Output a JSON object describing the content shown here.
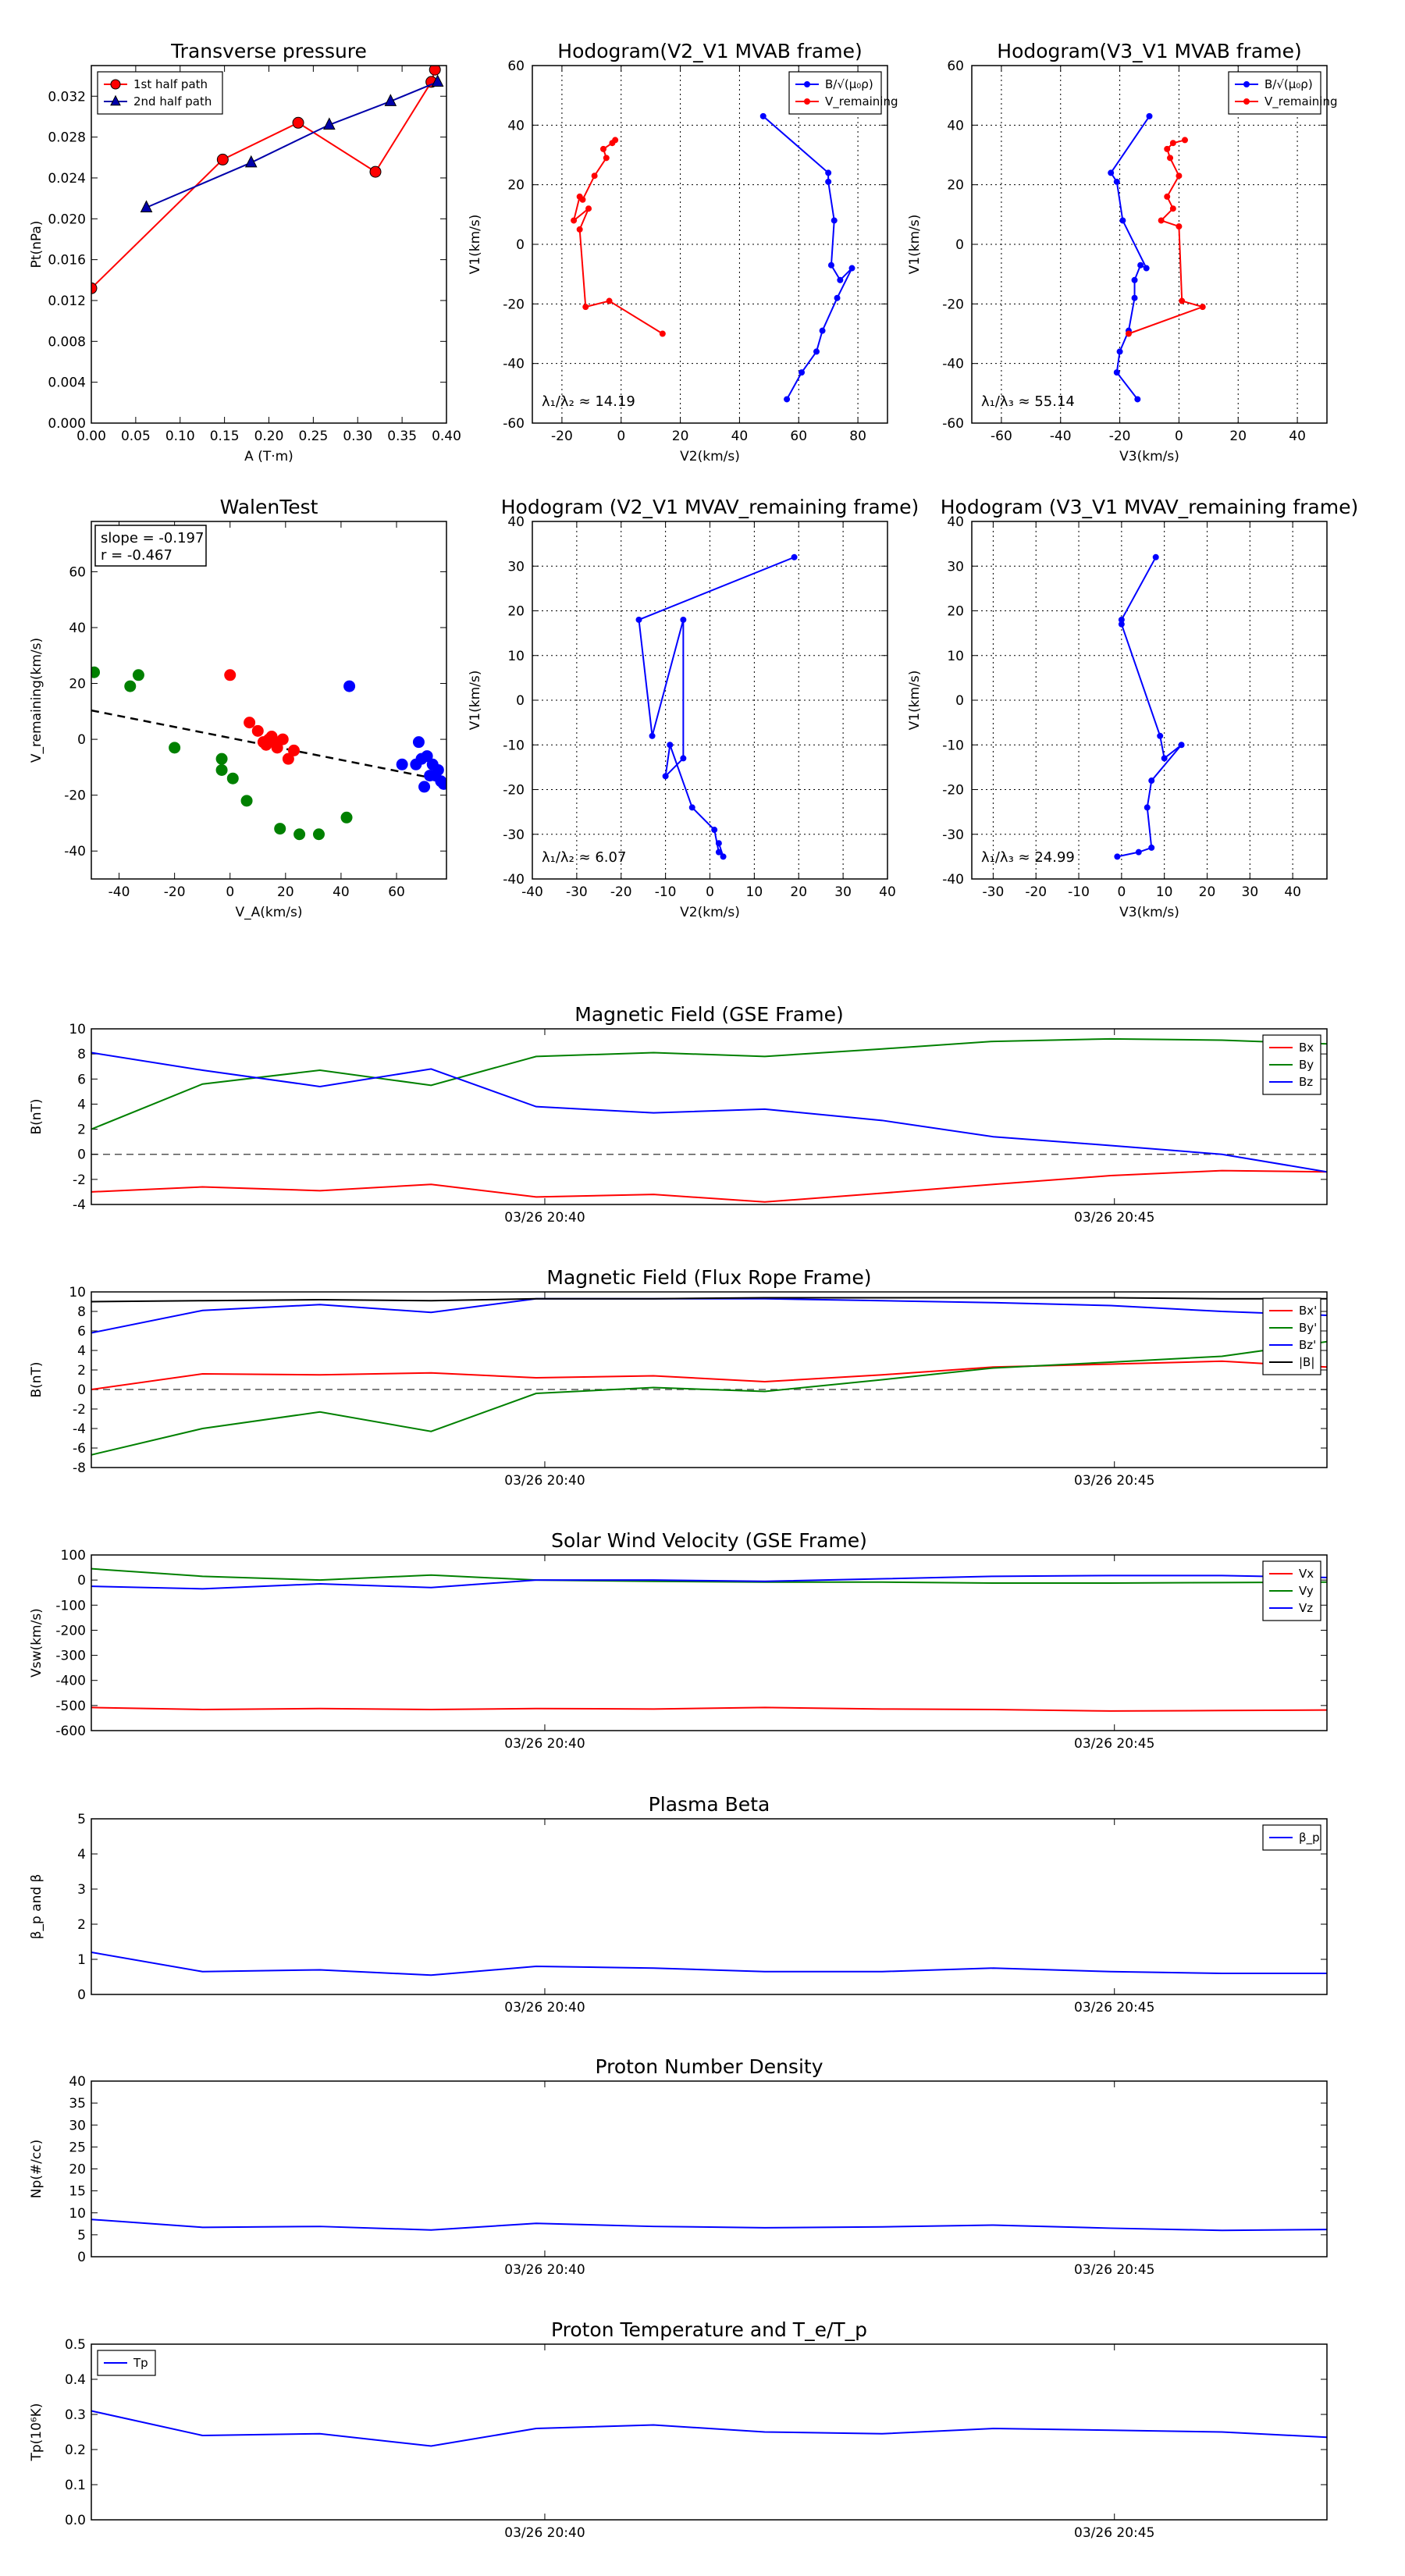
{
  "chart_data": [
    {
      "id": "transverse-pressure",
      "type": "line",
      "title": "Transverse pressure",
      "xlabel": "A (T·m)",
      "ylabel": "Pt(nPa)",
      "xlim": [
        0,
        0.4
      ],
      "ylim": [
        0,
        0.035
      ],
      "xticks": [
        0,
        0.05,
        0.1,
        0.15,
        0.2,
        0.25,
        0.3,
        0.35,
        0.4
      ],
      "xticklabels": [
        "0.00",
        "0.05",
        "0.10",
        "0.15",
        "0.20",
        "0.25",
        "0.30",
        "0.35",
        "0.40"
      ],
      "yticks": [
        0,
        0.004,
        0.008,
        0.012,
        0.016,
        0.02,
        0.024,
        0.028,
        0.032
      ],
      "yticklabels": [
        "0.000",
        "0.004",
        "0.008",
        "0.012",
        "0.016",
        "0.020",
        "0.024",
        "0.028",
        "0.032"
      ],
      "grid": false,
      "legend_position": "top-left",
      "series": [
        {
          "name": "1st half path",
          "color": "#ff0000",
          "marker": "circle",
          "x": [
            0.0,
            0.148,
            0.233,
            0.32,
            0.383,
            0.387
          ],
          "y": [
            0.0132,
            0.0258,
            0.0294,
            0.0246,
            0.0334,
            0.0346
          ]
        },
        {
          "name": "2nd half path",
          "color": "#0000aa",
          "marker": "triangle",
          "x": [
            0.062,
            0.18,
            0.268,
            0.337,
            0.39
          ],
          "y": [
            0.0211,
            0.0255,
            0.0292,
            0.0315,
            0.0334
          ]
        }
      ]
    },
    {
      "id": "hodogram-v2-v1-mvab",
      "type": "line",
      "title": "Hodogram(V2_V1 MVAB frame)",
      "xlabel": "V2(km/s)",
      "ylabel": "V1(km/s)",
      "xlim": [
        -30,
        90
      ],
      "ylim": [
        -60,
        60
      ],
      "xticks": [
        -20,
        0,
        20,
        40,
        60,
        80
      ],
      "yticks": [
        -60,
        -40,
        -20,
        0,
        20,
        40,
        60
      ],
      "grid": true,
      "legend_position": "top-right",
      "annotation": "λ₁/λ₂ ≈ 14.19",
      "series": [
        {
          "name": "B/√(μ₀ρ)",
          "color": "#0000ff",
          "x": [
            48,
            70,
            70,
            72,
            71,
            74,
            78,
            73,
            68,
            66,
            61,
            56
          ],
          "y": [
            43,
            24,
            21,
            8,
            -7,
            -12,
            -8,
            -18,
            -29,
            -36,
            -43,
            -52
          ]
        },
        {
          "name": "V_remaining",
          "color": "#ff0000",
          "x": [
            -2,
            -3,
            -6,
            -5,
            -9,
            -13,
            -14,
            -16,
            -11,
            -14,
            -12,
            -4,
            14
          ],
          "y": [
            35,
            34,
            32,
            29,
            23,
            15,
            16,
            8,
            12,
            5,
            -21,
            -19,
            -30
          ]
        }
      ]
    },
    {
      "id": "hodogram-v3-v1-mvab",
      "type": "line",
      "title": "Hodogram(V3_V1 MVAB frame)",
      "xlabel": "V3(km/s)",
      "ylabel": "V1(km/s)",
      "xlim": [
        -70,
        50
      ],
      "ylim": [
        -60,
        60
      ],
      "xticks": [
        -60,
        -40,
        -20,
        0,
        20,
        40
      ],
      "yticks": [
        -60,
        -40,
        -20,
        0,
        20,
        40,
        60
      ],
      "grid": true,
      "legend_position": "top-right",
      "annotation": "λ₁/λ₃ ≈ 55.14",
      "series": [
        {
          "name": "B/√(μ₀ρ)",
          "color": "#0000ff",
          "x": [
            -10,
            -23,
            -21,
            -19,
            -11,
            -13,
            -15,
            -15,
            -17,
            -20,
            -21,
            -14
          ],
          "y": [
            43,
            24,
            21,
            8,
            -8,
            -7,
            -12,
            -18,
            -29,
            -36,
            -43,
            -52
          ]
        },
        {
          "name": "V_remaining",
          "color": "#ff0000",
          "x": [
            2,
            -2,
            -4,
            -3,
            0,
            -4,
            -2,
            -6,
            0,
            1,
            8,
            -17
          ],
          "y": [
            35,
            34,
            32,
            29,
            23,
            16,
            12,
            8,
            6,
            -19,
            -21,
            -30
          ]
        }
      ]
    },
    {
      "id": "walen-test",
      "type": "scatter",
      "title": "WalenTest",
      "xlabel": "V_A(km/s)",
      "ylabel": "V_remaining(km/s)",
      "xlim": [
        -50,
        78
      ],
      "ylim": [
        -50,
        78
      ],
      "xticks": [
        -40,
        -20,
        0,
        20,
        40,
        60
      ],
      "yticks": [
        -40,
        -20,
        0,
        20,
        40,
        60
      ],
      "grid": false,
      "annotation_lines": [
        "slope = -0.197",
        "r = -0.467"
      ],
      "fit_line": {
        "color": "#000000",
        "style": "dashed",
        "slope": -0.197,
        "intercept": 0.5
      },
      "series": [
        {
          "color": "#008000",
          "x": [
            -49,
            -36,
            -33,
            -20,
            -3,
            -3,
            1,
            6,
            18,
            25,
            32,
            42
          ],
          "y": [
            24,
            19,
            23,
            -3,
            -7,
            -11,
            -14,
            -22,
            -32,
            -34,
            -34,
            -28
          ]
        },
        {
          "color": "#ff0000",
          "x": [
            0,
            7,
            10,
            12,
            13,
            14,
            15,
            16,
            17,
            19,
            21,
            23
          ],
          "y": [
            23,
            6,
            3,
            -1,
            -2,
            0,
            1,
            -1,
            -3,
            0,
            -7,
            -4
          ]
        },
        {
          "color": "#0000ff",
          "x": [
            43,
            62,
            67,
            68,
            69,
            70,
            71,
            72,
            73,
            74,
            75,
            76,
            77
          ],
          "y": [
            19,
            -9,
            -9,
            -1,
            -7,
            -17,
            -6,
            -13,
            -9,
            -13,
            -11,
            -15,
            -16
          ]
        }
      ]
    },
    {
      "id": "hodogram-v2-v1-mvav",
      "type": "line",
      "title": "Hodogram (V2_V1 MVAV_remaining frame)",
      "xlabel": "V2(km/s)",
      "ylabel": "V1(km/s)",
      "xlim": [
        -40,
        40
      ],
      "ylim": [
        -40,
        40
      ],
      "xticks": [
        -40,
        -30,
        -20,
        -10,
        0,
        10,
        20,
        30,
        40
      ],
      "yticks": [
        -40,
        -30,
        -20,
        -10,
        0,
        10,
        20,
        30,
        40
      ],
      "grid": true,
      "annotation": "λ₁/λ₂ ≈ 6.07",
      "series": [
        {
          "color": "#0000ff",
          "x": [
            19,
            -16,
            -13,
            -6,
            -6,
            -10,
            -9,
            -4,
            1,
            2,
            3,
            2
          ],
          "y": [
            32,
            18,
            -8,
            18,
            -13,
            -17,
            -10,
            -24,
            -29,
            -34,
            -35,
            -32
          ]
        }
      ]
    },
    {
      "id": "hodogram-v3-v1-mvav",
      "type": "line",
      "title": "Hodogram (V3_V1 MVAV_remaining frame)",
      "xlabel": "V3(km/s)",
      "ylabel": "V1(km/s)",
      "xlim": [
        -35,
        48
      ],
      "ylim": [
        -40,
        40
      ],
      "xticks": [
        -30,
        -20,
        -10,
        0,
        10,
        20,
        30,
        40
      ],
      "yticks": [
        -40,
        -30,
        -20,
        -10,
        0,
        10,
        20,
        30,
        40
      ],
      "grid": true,
      "annotation": "λ₁/λ₃ ≈ 24.99",
      "series": [
        {
          "color": "#0000ff",
          "x": [
            8,
            0,
            0,
            9,
            10,
            14,
            7,
            6,
            7,
            4,
            -1
          ],
          "y": [
            32,
            18,
            17,
            -8,
            -13,
            -10,
            -18,
            -24,
            -33,
            -34,
            -35
          ]
        }
      ]
    },
    {
      "id": "magnetic-field-gse",
      "type": "line",
      "title": "Magnetic Field (GSE Frame)",
      "ylabel": "B(nT)",
      "xlim": [
        0,
        1
      ],
      "ylim": [
        -4,
        10
      ],
      "yticks": [
        -4,
        -2,
        0,
        2,
        4,
        6,
        8,
        10
      ],
      "xticks": [
        0.367,
        0.828
      ],
      "xticklabels": [
        "03/26 20:40",
        "03/26 20:45"
      ],
      "zero_line": true,
      "legend_position": "top-right",
      "x": [
        0,
        0.09,
        0.185,
        0.275,
        0.36,
        0.455,
        0.545,
        0.64,
        0.73,
        0.825,
        0.915,
        1.0
      ],
      "series": [
        {
          "name": "Bx",
          "color": "#ff0000",
          "values": [
            -3.0,
            -2.6,
            -2.9,
            -2.4,
            -3.4,
            -3.2,
            -3.8,
            -3.1,
            -2.4,
            -1.7,
            -1.3,
            -1.4
          ]
        },
        {
          "name": "By",
          "color": "#008000",
          "values": [
            2.0,
            5.6,
            6.7,
            5.5,
            7.8,
            8.1,
            7.8,
            8.4,
            9.0,
            9.2,
            9.1,
            8.8
          ]
        },
        {
          "name": "Bz",
          "color": "#0000ff",
          "values": [
            8.1,
            6.7,
            5.4,
            6.8,
            3.8,
            3.3,
            3.6,
            2.7,
            1.4,
            0.7,
            0.0,
            -1.4
          ]
        }
      ]
    },
    {
      "id": "magnetic-field-flux-rope",
      "type": "line",
      "title": "Magnetic Field (Flux Rope Frame)",
      "ylabel": "B(nT)",
      "xlim": [
        0,
        1
      ],
      "ylim": [
        -8,
        10
      ],
      "yticks": [
        -8,
        -6,
        -4,
        -2,
        0,
        2,
        4,
        6,
        8,
        10
      ],
      "xticks": [
        0.367,
        0.828
      ],
      "xticklabels": [
        "03/26 20:40",
        "03/26 20:45"
      ],
      "zero_line": true,
      "legend_position": "top-right",
      "x": [
        0,
        0.09,
        0.185,
        0.275,
        0.36,
        0.455,
        0.545,
        0.64,
        0.73,
        0.825,
        0.915,
        1.0
      ],
      "series": [
        {
          "name": "Bx'",
          "color": "#ff0000",
          "values": [
            0.0,
            1.6,
            1.5,
            1.7,
            1.2,
            1.4,
            0.8,
            1.5,
            2.3,
            2.6,
            2.9,
            2.3
          ]
        },
        {
          "name": "By'",
          "color": "#008000",
          "values": [
            -6.7,
            -4.0,
            -2.3,
            -4.3,
            -0.4,
            0.2,
            -0.2,
            1.0,
            2.2,
            2.8,
            3.4,
            4.9
          ]
        },
        {
          "name": "Bz'",
          "color": "#0000ff",
          "values": [
            5.8,
            8.1,
            8.7,
            7.9,
            9.3,
            9.3,
            9.3,
            9.1,
            8.9,
            8.6,
            8.0,
            7.6
          ]
        },
        {
          "name": "|B|",
          "color": "#000000",
          "values": [
            9.0,
            9.1,
            9.2,
            9.1,
            9.3,
            9.3,
            9.4,
            9.4,
            9.4,
            9.4,
            9.3,
            9.3
          ]
        }
      ]
    },
    {
      "id": "solar-wind-velocity",
      "type": "line",
      "title": "Solar Wind Velocity (GSE Frame)",
      "ylabel": "Vsw(km/s)",
      "xlim": [
        0,
        1
      ],
      "ylim": [
        -600,
        100
      ],
      "yticks": [
        -600,
        -500,
        -400,
        -300,
        -200,
        -100,
        0,
        100
      ],
      "xticks": [
        0.367,
        0.828
      ],
      "xticklabels": [
        "03/26 20:40",
        "03/26 20:45"
      ],
      "legend_position": "top-right",
      "x": [
        0,
        0.09,
        0.185,
        0.275,
        0.36,
        0.455,
        0.545,
        0.64,
        0.73,
        0.825,
        0.915,
        1.0
      ],
      "series": [
        {
          "name": "Vx",
          "color": "#ff0000",
          "values": [
            -508,
            -516,
            -512,
            -516,
            -512,
            -514,
            -508,
            -514,
            -516,
            -522,
            -520,
            -518
          ]
        },
        {
          "name": "Vy",
          "color": "#008000",
          "values": [
            45,
            15,
            0,
            20,
            0,
            -5,
            -8,
            -8,
            -12,
            -12,
            -10,
            -8
          ]
        },
        {
          "name": "Vz",
          "color": "#0000ff",
          "values": [
            -25,
            -35,
            -15,
            -30,
            0,
            0,
            -5,
            5,
            15,
            18,
            18,
            10
          ]
        }
      ]
    },
    {
      "id": "plasma-beta",
      "type": "line",
      "title": "Plasma Beta",
      "ylabel": "β_p and β",
      "xlim": [
        0,
        1
      ],
      "ylim": [
        0,
        5
      ],
      "yticks": [
        0,
        1,
        2,
        3,
        4,
        5
      ],
      "xticks": [
        0.367,
        0.828
      ],
      "xticklabels": [
        "03/26 20:40",
        "03/26 20:45"
      ],
      "legend_position": "top-right",
      "x": [
        0,
        0.09,
        0.185,
        0.275,
        0.36,
        0.455,
        0.545,
        0.64,
        0.73,
        0.825,
        0.915,
        1.0
      ],
      "series": [
        {
          "name": "β_p",
          "color": "#0000ff",
          "values": [
            1.2,
            0.65,
            0.7,
            0.55,
            0.8,
            0.75,
            0.65,
            0.65,
            0.75,
            0.65,
            0.6,
            0.6
          ]
        }
      ]
    },
    {
      "id": "proton-number-density",
      "type": "line",
      "title": "Proton Number Density",
      "ylabel": "Np(#/cc)",
      "xlim": [
        0,
        1
      ],
      "ylim": [
        0,
        40
      ],
      "yticks": [
        0,
        5,
        10,
        15,
        20,
        25,
        30,
        35,
        40
      ],
      "xticks": [
        0.367,
        0.828
      ],
      "xticklabels": [
        "03/26 20:40",
        "03/26 20:45"
      ],
      "x": [
        0,
        0.09,
        0.185,
        0.275,
        0.36,
        0.455,
        0.545,
        0.64,
        0.73,
        0.825,
        0.915,
        1.0
      ],
      "series": [
        {
          "name": "Np",
          "color": "#0000ff",
          "values": [
            8.5,
            6.7,
            6.9,
            6.1,
            7.6,
            6.9,
            6.6,
            6.8,
            7.2,
            6.5,
            6.0,
            6.2
          ]
        }
      ]
    },
    {
      "id": "proton-temperature",
      "type": "line",
      "title": "Proton Temperature and T_e/T_p",
      "ylabel": "Tp(10⁶K)",
      "xlim": [
        0,
        1
      ],
      "ylim": [
        0,
        0.5
      ],
      "yticks": [
        0,
        0.1,
        0.2,
        0.3,
        0.4,
        0.5
      ],
      "yticklabels": [
        "0.0",
        "0.1",
        "0.2",
        "0.3",
        "0.4",
        "0.5"
      ],
      "xticks": [
        0.367,
        0.828
      ],
      "xticklabels": [
        "03/26 20:40",
        "03/26 20:45"
      ],
      "legend_position": "top-left",
      "x": [
        0,
        0.09,
        0.185,
        0.275,
        0.36,
        0.455,
        0.545,
        0.64,
        0.73,
        0.825,
        0.915,
        1.0
      ],
      "series": [
        {
          "name": "Tp",
          "color": "#0000ff",
          "values": [
            0.31,
            0.24,
            0.245,
            0.21,
            0.26,
            0.27,
            0.25,
            0.245,
            0.26,
            0.255,
            0.25,
            0.235
          ]
        }
      ]
    }
  ]
}
